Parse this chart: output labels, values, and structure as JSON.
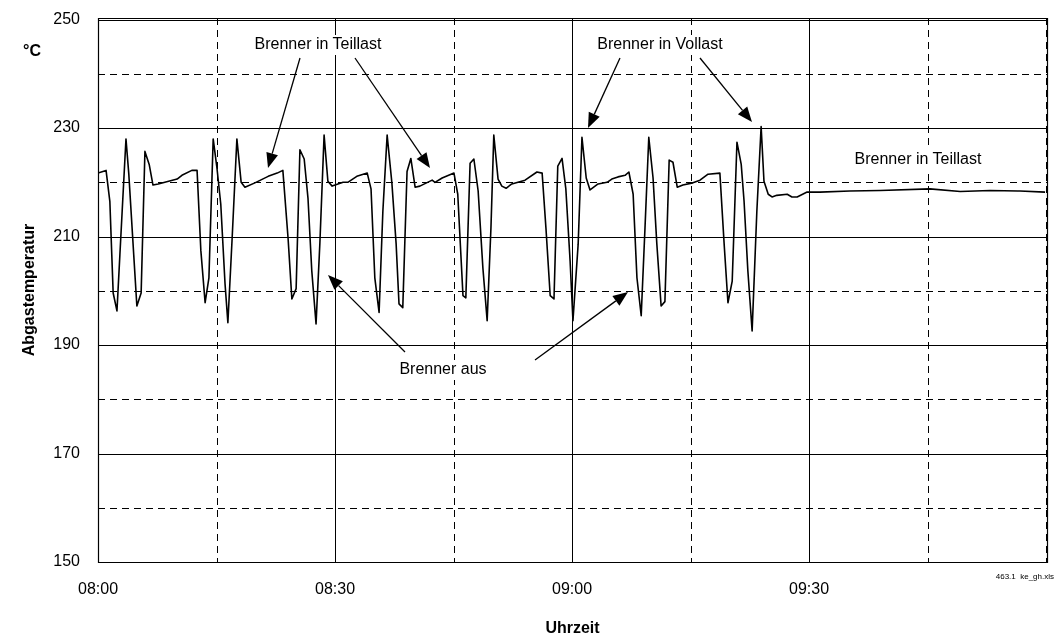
{
  "chart_data": {
    "type": "line",
    "xlabel": "Uhrzeit",
    "ylabel": "Abgastemperatur",
    "annotations": [
      "Brenner in Teillast",
      "Brenner in Vollast",
      "Brenner aus",
      "Brenner in Teillast",
      "°C",
      "463.1  ke_gh.xls"
    ],
    "xlim": [
      8,
      10
    ],
    "xticks": [
      {
        "value": 8,
        "label": "08:00"
      },
      {
        "value": 8.25,
        "label": null
      },
      {
        "value": 8.5,
        "label": "08:30"
      },
      {
        "value": 8.75,
        "label": null
      },
      {
        "value": 9,
        "label": "09:00"
      },
      {
        "value": 9.25,
        "label": null
      },
      {
        "value": 9.5,
        "label": "09:30"
      },
      {
        "value": 9.75,
        "label": null
      },
      {
        "value": 10,
        "label": null
      }
    ],
    "ylim": [
      150,
      250
    ],
    "yticks": [
      150,
      {
        "value": 160,
        "label": null
      },
      170,
      {
        "value": 180,
        "label": null
      },
      190,
      {
        "value": 200,
        "label": null
      },
      210,
      {
        "value": 220,
        "label": null
      },
      230,
      {
        "value": 240,
        "label": null
      },
      250
    ],
    "grid": true,
    "marker": "none",
    "line_style": "solid",
    "series": [
      {
        "color": "#000000",
        "x": [
          8.0,
          8.017,
          8.025,
          8.032,
          8.04,
          8.051,
          8.059,
          8.065,
          8.074,
          8.082,
          8.091,
          8.099,
          8.108,
          8.116,
          8.127,
          8.141,
          8.167,
          8.177,
          8.198,
          8.209,
          8.217,
          8.226,
          8.234,
          8.243,
          8.251,
          8.259,
          8.268,
          8.274,
          8.283,
          8.293,
          8.302,
          8.31,
          8.331,
          8.359,
          8.378,
          8.39,
          8.401,
          8.409,
          8.418,
          8.426,
          8.435,
          8.443,
          8.451,
          8.46,
          8.468,
          8.477,
          8.485,
          8.494,
          8.517,
          8.527,
          8.546,
          8.568,
          8.576,
          8.584,
          8.593,
          8.601,
          8.61,
          8.62,
          8.629,
          8.635,
          8.643,
          8.652,
          8.66,
          8.669,
          8.679,
          8.705,
          8.711,
          8.726,
          8.751,
          8.759,
          8.77,
          8.776,
          8.785,
          8.793,
          8.802,
          8.812,
          8.821,
          8.829,
          8.835,
          8.844,
          8.852,
          8.861,
          8.873,
          8.901,
          8.926,
          8.937,
          8.945,
          8.954,
          8.962,
          8.97,
          8.979,
          8.987,
          8.996,
          9.002,
          9.013,
          9.021,
          9.03,
          9.038,
          9.055,
          9.074,
          9.084,
          9.097,
          9.112,
          9.12,
          9.129,
          9.137,
          9.146,
          9.154,
          9.162,
          9.171,
          9.179,
          9.188,
          9.196,
          9.205,
          9.213,
          9.222,
          9.234,
          9.255,
          9.27,
          9.287,
          9.312,
          9.321,
          9.329,
          9.338,
          9.348,
          9.357,
          9.363,
          9.371,
          9.38,
          9.39,
          9.399,
          9.405,
          9.414,
          9.422,
          9.432,
          9.454,
          9.464,
          9.475,
          9.496,
          9.523,
          9.586,
          9.65,
          9.755,
          9.819,
          9.882,
          9.945,
          9.998
        ],
        "values": [
          221.7,
          222.2,
          216.5,
          199.6,
          196.3,
          214.7,
          228.0,
          221.5,
          208.6,
          197.2,
          199.6,
          225.7,
          223.3,
          219.5,
          219.7,
          220.0,
          220.6,
          221.3,
          222.2,
          222.2,
          207.4,
          197.8,
          202.4,
          228.0,
          222.6,
          216.0,
          201.3,
          194.1,
          209.7,
          228.0,
          220.0,
          219.1,
          219.9,
          221.1,
          221.7,
          222.2,
          209.7,
          198.5,
          200.4,
          226.0,
          224.3,
          217.1,
          203.7,
          193.9,
          208.6,
          228.7,
          220.2,
          219.3,
          220.0,
          220.0,
          221.1,
          221.7,
          218.8,
          202.4,
          196.0,
          214.7,
          228.7,
          219.9,
          208.6,
          197.6,
          196.9,
          222.0,
          224.4,
          219.1,
          219.3,
          220.4,
          220.0,
          220.8,
          221.7,
          217.8,
          199.1,
          198.7,
          223.5,
          224.3,
          218.4,
          204.2,
          194.5,
          211.6,
          228.7,
          220.6,
          219.3,
          218.9,
          219.7,
          220.4,
          221.9,
          221.7,
          211.6,
          199.1,
          198.5,
          223.0,
          224.4,
          218.8,
          205.5,
          194.5,
          208.6,
          228.3,
          220.8,
          218.6,
          219.7,
          220.0,
          220.6,
          221.0,
          221.3,
          221.9,
          217.8,
          202.4,
          195.4,
          211.6,
          228.3,
          220.8,
          208.6,
          197.2,
          198.0,
          224.1,
          223.7,
          219.1,
          219.5,
          219.9,
          220.4,
          221.5,
          221.7,
          208.6,
          197.8,
          201.8,
          227.4,
          223.3,
          216.5,
          203.7,
          192.6,
          214.7,
          230.3,
          220.2,
          217.8,
          217.3,
          217.6,
          217.8,
          217.3,
          217.3,
          218.2,
          218.2,
          218.4,
          218.5,
          218.8,
          218.3,
          218.5,
          218.4,
          218.2
        ]
      }
    ]
  }
}
